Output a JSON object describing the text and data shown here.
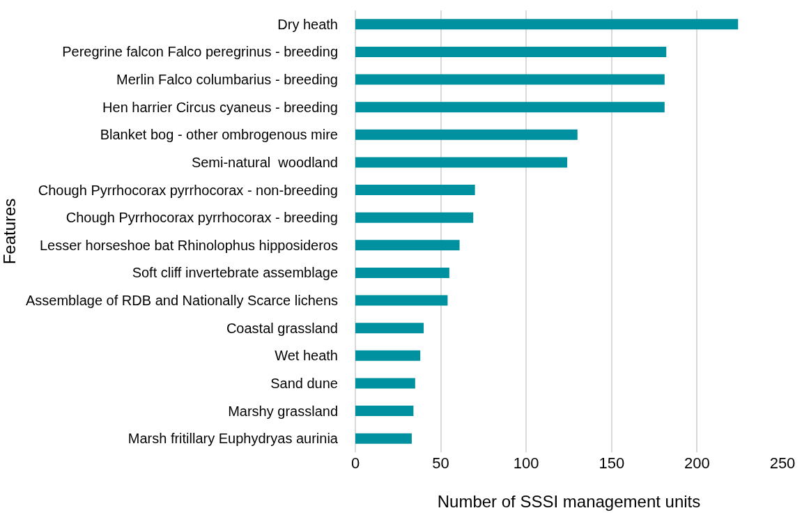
{
  "chart_data": {
    "type": "bar",
    "orientation": "horizontal",
    "xlabel": "Number of SSSI management units",
    "ylabel": "Features",
    "categories": [
      "Dry heath",
      "Peregrine falcon Falco peregrinus - breeding",
      "Merlin Falco columbarius - breeding",
      "Hen harrier Circus cyaneus - breeding",
      "Blanket bog - other ombrogenous mire",
      "Semi-natural  woodland",
      "Chough Pyrrhocorax pyrrhocorax - non-breeding",
      "Chough Pyrrhocorax pyrrhocorax - breeding",
      "Lesser horseshoe bat Rhinolophus hipposideros",
      "Soft cliff invertebrate assemblage",
      "Assemblage of RDB and Nationally Scarce lichens",
      "Coastal grassland",
      "Wet heath",
      "Sand dune",
      "Marshy grassland",
      "Marsh fritillary Euphydryas aurinia"
    ],
    "values": [
      224,
      182,
      181,
      181,
      130,
      124,
      70,
      69,
      61,
      55,
      54,
      40,
      38,
      35,
      34,
      33
    ],
    "color": "#0091a1",
    "xlim": [
      0,
      250
    ],
    "xticks": [
      0,
      50,
      100,
      150,
      200,
      250
    ],
    "grid": "x"
  }
}
